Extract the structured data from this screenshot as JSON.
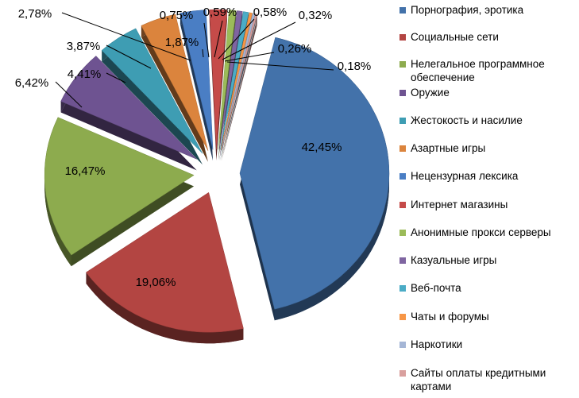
{
  "chart_data": {
    "type": "pie",
    "title": "",
    "series": [
      {
        "name": "Порнография, эротика",
        "value": 42.45,
        "label": "42,45%",
        "color": "#4372AA"
      },
      {
        "name": "Социальные сети",
        "value": 19.06,
        "label": "19,06%",
        "color": "#B34542"
      },
      {
        "name": "Нелегальное программное обеспечение",
        "value": 16.47,
        "label": "16,47%",
        "color": "#8DAB4E"
      },
      {
        "name": "Оружие",
        "value": 6.42,
        "label": "6,42%",
        "color": "#6E5391"
      },
      {
        "name": "Жестокость и насилие",
        "value": 4.41,
        "label": "4,41%",
        "color": "#3E9DB3"
      },
      {
        "name": "Азартные игры",
        "value": 3.87,
        "label": "3,87%",
        "color": "#DB843D"
      },
      {
        "name": "Нецензурная лексика",
        "value": 2.78,
        "label": "2,78%",
        "color": "#4A7EC4"
      },
      {
        "name": "Интернет магазины",
        "value": 1.87,
        "label": "1,87%",
        "color": "#C54B49"
      },
      {
        "name": "Анонимные прокси серверы",
        "value": 0.75,
        "label": "0,75%",
        "color": "#9BBB59"
      },
      {
        "name": "Казуальные игры",
        "value": 0.59,
        "label": "0,59%",
        "color": "#7F65A1"
      },
      {
        "name": "Веб-почта",
        "value": 0.58,
        "label": "0,58%",
        "color": "#4BACC6"
      },
      {
        "name": "Чаты и форумы",
        "value": 0.32,
        "label": "0,32%",
        "color": "#F79646"
      },
      {
        "name": "Наркотики",
        "value": 0.26,
        "label": "0,26%",
        "color": "#A5B6D6"
      },
      {
        "name": "Сайты оплаты кредитными картами",
        "value": 0.18,
        "label": "0,18%",
        "color": "#D9A09E"
      }
    ],
    "legend_position": "right",
    "exploded": true,
    "style": "3d"
  },
  "legend": {
    "items": [
      {
        "label": "Порнография, эротика",
        "color": "#4372AA"
      },
      {
        "label": "Социальные сети",
        "color": "#B34542"
      },
      {
        "label": "Нелегальное программное обеспечение",
        "color": "#8DAB4E"
      },
      {
        "label": "Оружие",
        "color": "#6E5391"
      },
      {
        "label": "Жестокость и насилие",
        "color": "#3E9DB3"
      },
      {
        "label": "Азартные игры",
        "color": "#DB843D"
      },
      {
        "label": "Нецензурная лексика",
        "color": "#4A7EC4"
      },
      {
        "label": "Интернет магазины",
        "color": "#C54B49"
      },
      {
        "label": "Анонимные прокси серверы",
        "color": "#9BBB59"
      },
      {
        "label": "Казуальные игры",
        "color": "#7F65A1"
      },
      {
        "label": "Веб-почта",
        "color": "#4BACC6"
      },
      {
        "label": "Чаты и форумы",
        "color": "#F79646"
      },
      {
        "label": "Наркотики",
        "color": "#A5B6D6"
      },
      {
        "label": "Сайты оплаты кредитными картами",
        "color": "#D9A09E"
      }
    ]
  }
}
